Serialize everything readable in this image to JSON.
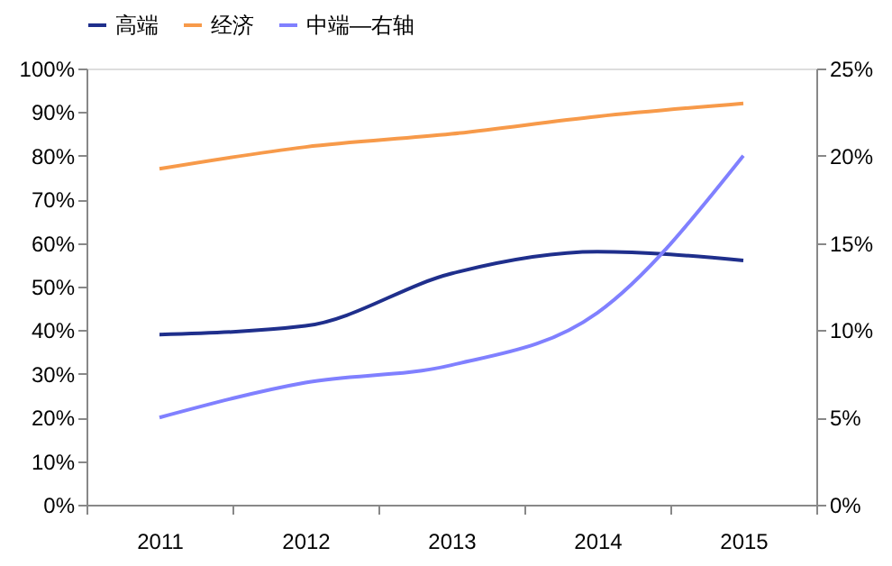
{
  "chart_data": {
    "type": "line",
    "categories": [
      "2011",
      "2012",
      "2013",
      "2014",
      "2015"
    ],
    "series": [
      {
        "name": "高端",
        "color": "#1f2f8c",
        "values": [
          39,
          41,
          53,
          58,
          56
        ]
      },
      {
        "name": "经济",
        "color": "#f79a4a",
        "values": [
          77,
          82,
          85,
          89,
          92
        ]
      },
      {
        "name": "中端—右轴",
        "color": "#8080ff",
        "values": [
          5,
          7,
          8,
          11,
          20
        ],
        "axis": "y2"
      }
    ],
    "ylim": [
      0,
      100
    ],
    "yticks": [
      {
        "value": 0,
        "label": "0%"
      },
      {
        "value": 10,
        "label": "10%"
      },
      {
        "value": 20,
        "label": "20%"
      },
      {
        "value": 30,
        "label": "30%"
      },
      {
        "value": 40,
        "label": "40%"
      },
      {
        "value": 50,
        "label": "50%"
      },
      {
        "value": 60,
        "label": "60%"
      },
      {
        "value": 70,
        "label": "70%"
      },
      {
        "value": 80,
        "label": "80%"
      },
      {
        "value": 90,
        "label": "90%"
      },
      {
        "value": 100,
        "label": "100%"
      }
    ],
    "y2lim": [
      0,
      25
    ],
    "y2ticks": [
      {
        "value": 0,
        "label": "0%"
      },
      {
        "value": 5,
        "label": "5%"
      },
      {
        "value": 10,
        "label": "10%"
      },
      {
        "value": 15,
        "label": "15%"
      },
      {
        "value": 20,
        "label": "20%"
      },
      {
        "value": 25,
        "label": "25%"
      }
    ],
    "legend": "top",
    "grid": false,
    "marker": "none",
    "line_style": "solid"
  }
}
